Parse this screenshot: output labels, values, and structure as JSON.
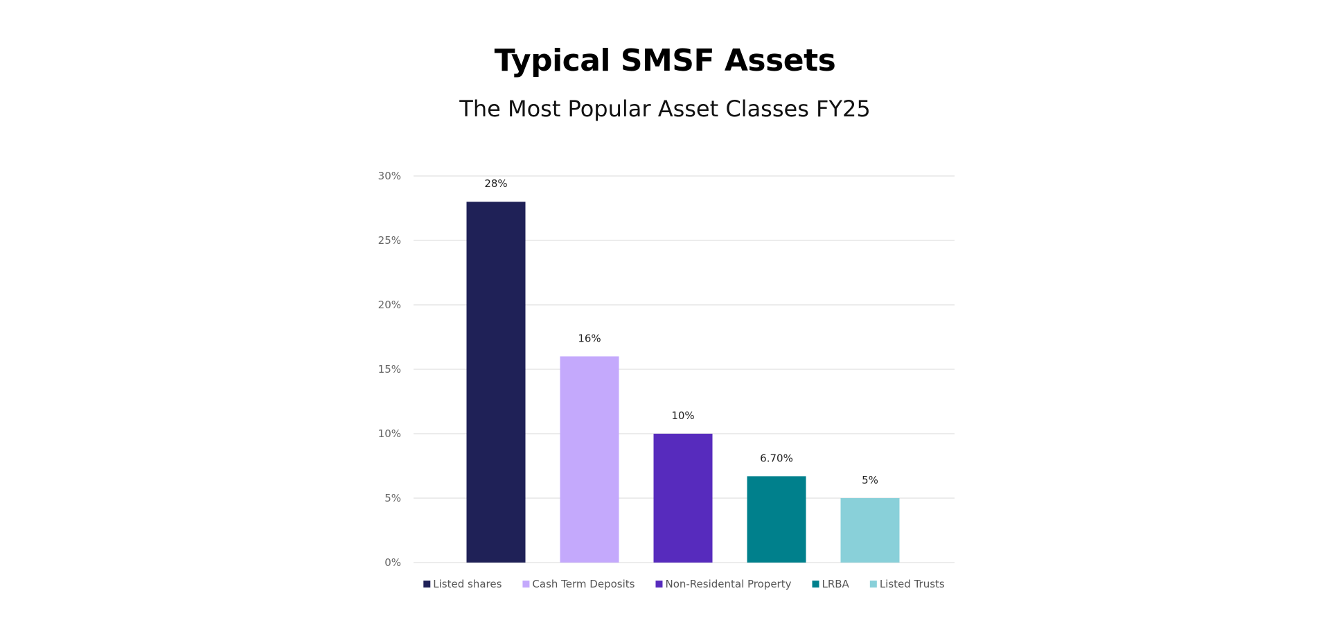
{
  "chart_data": {
    "type": "bar",
    "title": "Typical SMSF Assets",
    "subtitle": "The Most Popular Asset Classes FY25",
    "categories": [
      "Listed shares",
      "Cash Term Deposits",
      "Non-Residental Property",
      "LRBA",
      "Listed Trusts"
    ],
    "values": [
      28,
      16,
      10,
      6.7,
      5
    ],
    "data_labels": [
      "28%",
      "16%",
      "10%",
      "6.70%",
      "5%"
    ],
    "colors": [
      "#1f2157",
      "#c4a9fc",
      "#572bbd",
      "#00808c",
      "#89d0d9"
    ],
    "ylim": [
      0,
      30
    ],
    "yticks": [
      0,
      5,
      10,
      15,
      20,
      25,
      30
    ],
    "ytick_labels": [
      "0%",
      "5%",
      "10%",
      "15%",
      "20%",
      "25%",
      "30%"
    ],
    "grid": true,
    "grid_color": "#d9d9d9",
    "legend": {
      "position": "bottom",
      "entries": [
        "Listed shares",
        "Cash Term Deposits",
        "Non-Residental Property",
        "LRBA",
        "Listed Trusts"
      ]
    },
    "xlabel": "",
    "ylabel": ""
  }
}
